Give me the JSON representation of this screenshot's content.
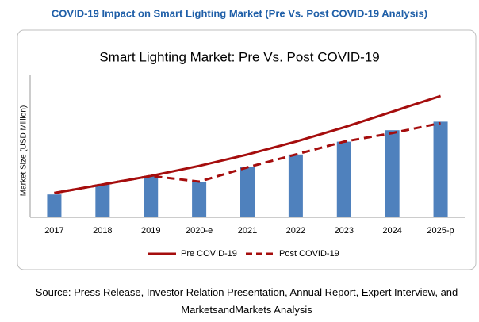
{
  "header": {
    "title": "COVID-19 Impact on Smart Lighting Market (Pre Vs. Post COVID-19 Analysis)"
  },
  "chart_data": {
    "type": "bar-line",
    "title": "Smart Lighting Market: Pre Vs. Post COVID-19",
    "y_label": "Market Size (USD Million)",
    "categories": [
      "2017",
      "2018",
      "2019",
      "2020-e",
      "2021",
      "2022",
      "2023",
      "2024",
      "2025-p"
    ],
    "values": [
      16,
      23,
      29,
      25,
      35,
      44,
      53,
      61,
      67
    ],
    "color": "#4f81bd",
    "series": [
      {
        "name": "Pre COVID-19",
        "color": "#a50d0d",
        "dashed": false,
        "values": [
          17,
          23,
          29,
          36,
          44,
          53,
          63,
          74,
          85
        ]
      },
      {
        "name": "Post COVID-19",
        "color": "#a50d0d",
        "dashed": true,
        "values": [
          17,
          23,
          29,
          25,
          35,
          44,
          53,
          59,
          66
        ]
      }
    ],
    "ylim": [
      0,
      100
    ],
    "grid": false
  },
  "source": "Source: Press Release, Investor Relation Presentation, Annual Report, Expert Interview, and MarketsandMarkets Analysis"
}
